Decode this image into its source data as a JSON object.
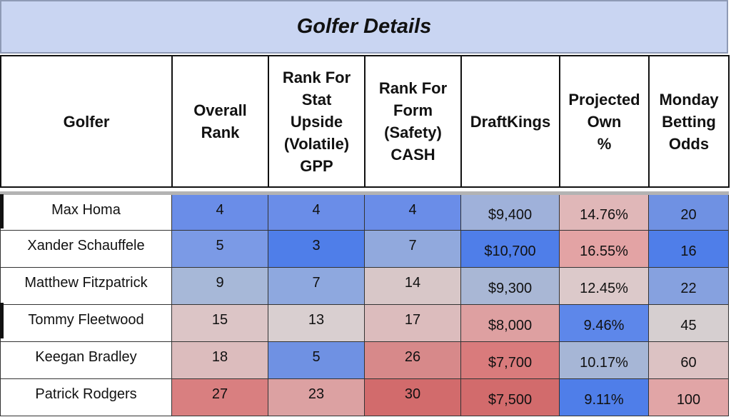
{
  "title": "Golfer Details",
  "headers": [
    "Golfer",
    "Overall\nRank",
    "Rank For\nStat\nUpside\n(Volatile)\nGPP",
    "Rank For\nForm\n(Safety)\nCASH",
    "DraftKings",
    "Projected\nOwn\n%",
    "Monday\nBetting\nOdds"
  ],
  "rows": [
    {
      "golfer": "Max Homa",
      "overall": "4",
      "stat_upside": "4",
      "form": "4",
      "draftkings": "$9,400",
      "own": "14.76%",
      "odds": "20",
      "colors": [
        "#6a8de8",
        "#6a8de8",
        "#6a8de8",
        "#9fb1da",
        "#e0b7b8",
        "#6f91e3"
      ]
    },
    {
      "golfer": "Xander Schauffele",
      "overall": "5",
      "stat_upside": "3",
      "form": "7",
      "draftkings": "$10,700",
      "own": "16.55%",
      "odds": "16",
      "colors": [
        "#7b9ae6",
        "#4f7ee9",
        "#91a9dd",
        "#4f7ee9",
        "#e3a3a4",
        "#4f7ee9"
      ]
    },
    {
      "golfer": "Matthew Fitzpatrick",
      "overall": "9",
      "stat_upside": "7",
      "form": "14",
      "draftkings": "$9,300",
      "own": "12.45%",
      "odds": "22",
      "colors": [
        "#a7b8d8",
        "#8ea8df",
        "#d8c7c8",
        "#a9b7d5",
        "#dcc9ca",
        "#86a1df"
      ]
    },
    {
      "golfer": "Tommy Fleetwood",
      "overall": "15",
      "stat_upside": "13",
      "form": "17",
      "draftkings": "$8,000",
      "own": "9.46%",
      "odds": "45",
      "colors": [
        "#dcc5c6",
        "#d9cfd0",
        "#dcbcbd",
        "#dea0a1",
        "#5d87ea",
        "#d6cfd0"
      ]
    },
    {
      "golfer": "Keegan Bradley",
      "overall": "18",
      "stat_upside": "5",
      "form": "26",
      "draftkings": "$7,700",
      "own": "10.17%",
      "odds": "60",
      "colors": [
        "#dcbcbd",
        "#6f91e3",
        "#d7898a",
        "#d97b7c",
        "#a6b6d6",
        "#dcc2c3"
      ]
    },
    {
      "golfer": "Patrick Rodgers",
      "overall": "27",
      "stat_upside": "23",
      "form": "30",
      "draftkings": "$7,500",
      "own": "9.11%",
      "odds": "100",
      "colors": [
        "#d97f80",
        "#dca1a2",
        "#d26b6c",
        "#d26b6c",
        "#4f7ee9",
        "#e1a5a6"
      ]
    }
  ]
}
